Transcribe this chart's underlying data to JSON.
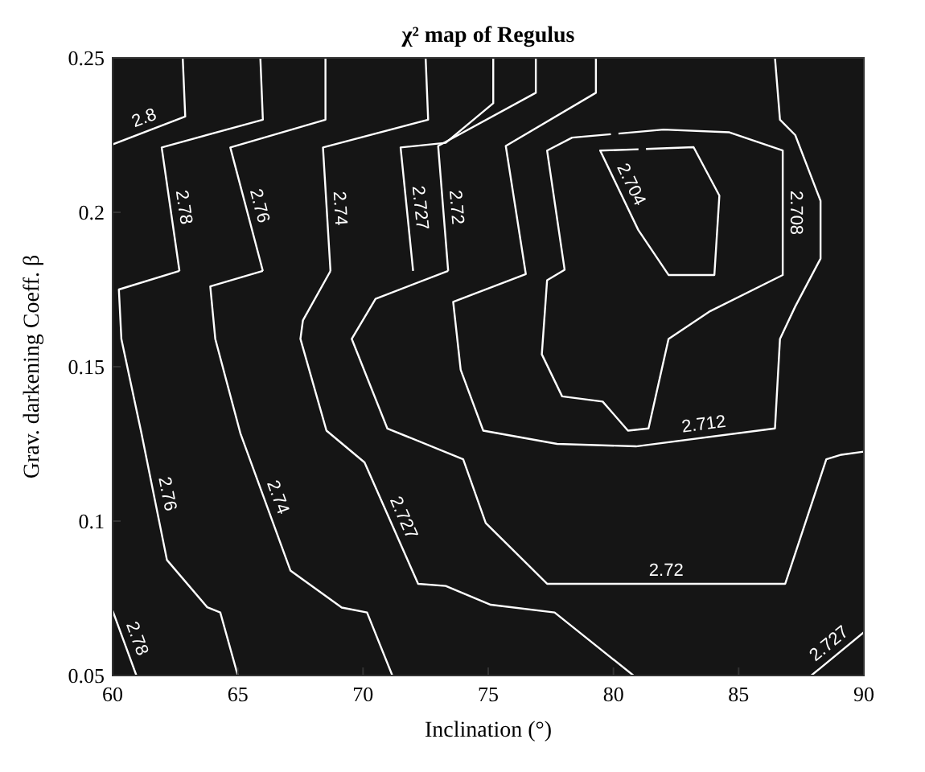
{
  "chart_data": {
    "type": "line",
    "title": "χ² map of Regulus",
    "xlabel": "Inclination (°)",
    "ylabel": "Grav. darkening Coeff. β",
    "xlim": [
      60,
      90
    ],
    "xticks": [
      60,
      65,
      70,
      75,
      80,
      85,
      90
    ],
    "ylim": [
      0.05,
      0.25
    ],
    "yticks": [
      0.05,
      0.1,
      0.15,
      0.2,
      0.25
    ],
    "grid": false,
    "marker": "none",
    "line_style": "solid",
    "series": [
      {
        "name": "2.8",
        "color": "#ffffff",
        "x": [
          62.8,
          62.9,
          60
        ],
        "values": [
          0.25,
          0.231,
          0.222
        ]
      },
      {
        "name": "2.78",
        "color": "#ffffff",
        "x": [
          65.9,
          66.0,
          61.96,
          62.67,
          null,
          60.0,
          60.95
        ],
        "values": [
          0.25,
          0.23,
          0.221,
          0.181,
          null,
          0.071,
          0.05
        ]
      },
      {
        "name": "2.76",
        "color": "#ffffff",
        "x": [
          68.5,
          68.5,
          64.7,
          66.0,
          null,
          62.67,
          60.25,
          60.35,
          61.15,
          62.17,
          63.78,
          64.3,
          65.0
        ],
        "values": [
          0.25,
          0.23,
          0.221,
          0.181,
          null,
          0.181,
          0.175,
          0.159,
          0.1285,
          0.0874,
          0.0721,
          0.0704,
          0.05
        ]
      },
      {
        "name": "2.74",
        "color": "#ffffff",
        "x": [
          72.5,
          72.6,
          68.4,
          68.7,
          null,
          66.0,
          63.9,
          64.1,
          65.1,
          67.1,
          69.15,
          70.16,
          71.17
        ],
        "values": [
          0.25,
          0.23,
          0.221,
          0.181,
          null,
          0.181,
          0.176,
          0.159,
          0.1285,
          0.084,
          0.072,
          0.0704,
          0.05
        ]
      },
      {
        "name": "2.727",
        "color": "#ffffff",
        "x": [
          75.2,
          75.2,
          73.3,
          71.5,
          72.0,
          null,
          68.7,
          67.6,
          67.5,
          68.54,
          70.06,
          72.2,
          73.3,
          75.1,
          77.65,
          80.8,
          null,
          87.9,
          90
        ],
        "values": [
          0.25,
          0.2353,
          0.2225,
          0.221,
          0.181,
          null,
          0.181,
          0.165,
          0.159,
          0.1293,
          0.119,
          0.0797,
          0.079,
          0.0729,
          0.0704,
          0.05,
          null,
          0.05,
          0.064
        ]
      },
      {
        "name": "2.72",
        "color": "#ffffff",
        "x": [
          76.9,
          76.9,
          73.0,
          73.4,
          null,
          73.4,
          70.5,
          69.55,
          70.97,
          74.0,
          74.9,
          77.35,
          86.86,
          88.5,
          89.1,
          90
        ],
        "values": [
          0.25,
          0.2387,
          0.2215,
          0.181,
          null,
          0.181,
          0.172,
          0.159,
          0.13,
          0.12,
          0.0994,
          0.0797,
          0.0797,
          0.12,
          0.1215,
          0.1225
        ]
      },
      {
        "name": "2.712",
        "color": "#ffffff",
        "x": [
          79.3,
          79.3,
          75.7,
          76.5,
          73.6,
          73.9,
          74.8,
          77.75,
          80.9,
          86.45,
          86.65,
          87.26,
          88.27,
          88.27,
          87.26,
          86.65,
          86.45
        ],
        "values": [
          0.25,
          0.2387,
          0.2215,
          0.18,
          0.171,
          0.149,
          0.1293,
          0.125,
          0.1242,
          0.13,
          0.159,
          0.1695,
          0.185,
          0.2037,
          0.225,
          0.23,
          0.25
        ]
      },
      {
        "name": "2.708",
        "color": "#ffffff",
        "x": [
          80.2,
          82.0,
          84.63,
          86.76,
          86.76,
          83.82,
          82.2,
          81.4,
          80.58,
          79.57,
          77.95,
          77.14,
          77.35,
          78.05,
          77.35,
          78.35,
          79.9
        ],
        "values": [
          0.2255,
          0.2268,
          0.2259,
          0.22,
          0.1797,
          0.1678,
          0.159,
          0.13,
          0.1293,
          0.1387,
          0.1404,
          0.154,
          0.178,
          0.1814,
          0.22,
          0.2242,
          0.2253
        ]
      },
      {
        "name": "2.704",
        "color": "#ffffff",
        "x": [
          81.3,
          83.2,
          84.23,
          84.03,
          82.2,
          80.99,
          79.47,
          81.0
        ],
        "values": [
          0.2205,
          0.2211,
          0.2054,
          0.1797,
          0.1797,
          0.1943,
          0.22,
          0.2204
        ]
      }
    ]
  }
}
